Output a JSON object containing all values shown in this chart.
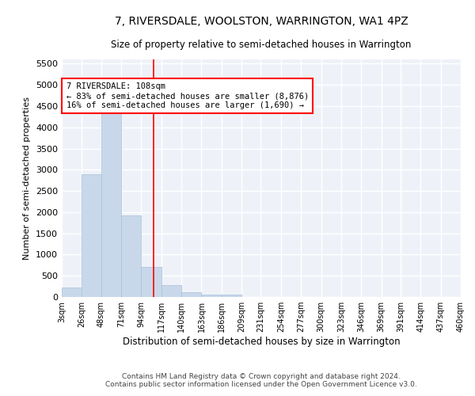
{
  "title": "7, RIVERSDALE, WOOLSTON, WARRINGTON, WA1 4PZ",
  "subtitle": "Size of property relative to semi-detached houses in Warrington",
  "xlabel": "Distribution of semi-detached houses by size in Warrington",
  "ylabel": "Number of semi-detached properties",
  "bar_color": "#c8d8ea",
  "bar_edge_color": "#a8c0d8",
  "background_color": "#eef2f8",
  "grid_color": "#ffffff",
  "vline_color": "red",
  "vline_x": 108,
  "annotation_text": "7 RIVERSDALE: 108sqm\n← 83% of semi-detached houses are smaller (8,876)\n16% of semi-detached houses are larger (1,690) →",
  "annotation_box_color": "white",
  "annotation_box_edge_color": "red",
  "bin_edges": [
    3,
    26,
    48,
    71,
    94,
    117,
    140,
    163,
    186,
    209,
    231,
    254,
    277,
    300,
    323,
    346,
    369,
    391,
    414,
    437,
    460
  ],
  "bin_counts": [
    220,
    2900,
    4380,
    1930,
    710,
    280,
    110,
    60,
    55,
    0,
    0,
    0,
    0,
    0,
    0,
    0,
    0,
    0,
    0,
    0
  ],
  "ylim": [
    0,
    5600
  ],
  "yticks": [
    0,
    500,
    1000,
    1500,
    2000,
    2500,
    3000,
    3500,
    4000,
    4500,
    5000,
    5500
  ],
  "footer_text": "Contains HM Land Registry data © Crown copyright and database right 2024.\nContains public sector information licensed under the Open Government Licence v3.0.",
  "tick_labels": [
    "3sqm",
    "26sqm",
    "48sqm",
    "71sqm",
    "94sqm",
    "117sqm",
    "140sqm",
    "163sqm",
    "186sqm",
    "209sqm",
    "231sqm",
    "254sqm",
    "277sqm",
    "300sqm",
    "323sqm",
    "346sqm",
    "369sqm",
    "391sqm",
    "414sqm",
    "437sqm",
    "460sqm"
  ]
}
